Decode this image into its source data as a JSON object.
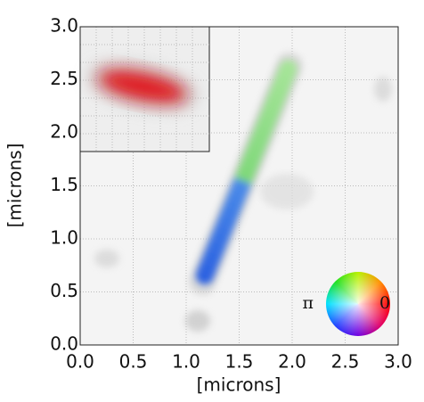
{
  "chart_data": {
    "type": "image",
    "xlabel": "[microns]",
    "ylabel": "[microns]",
    "xlim": [
      0,
      3
    ],
    "ylim": [
      0,
      3
    ],
    "xticks": [
      {
        "value": 0,
        "label": "0.0"
      },
      0.5,
      {
        "value": 1,
        "label": "1.0"
      },
      1.5,
      {
        "value": 2,
        "label": "2.0"
      },
      2.5,
      {
        "value": 3,
        "label": "3.0"
      }
    ],
    "yticks": [
      {
        "value": 0,
        "label": "0.0"
      },
      0.5,
      {
        "value": 1,
        "label": "1.0"
      },
      1.5,
      {
        "value": 2,
        "label": "2.0"
      },
      2.5,
      {
        "value": 3,
        "label": "3.0"
      }
    ],
    "grid": true,
    "annotations": [
      "π",
      "0"
    ]
  }
}
